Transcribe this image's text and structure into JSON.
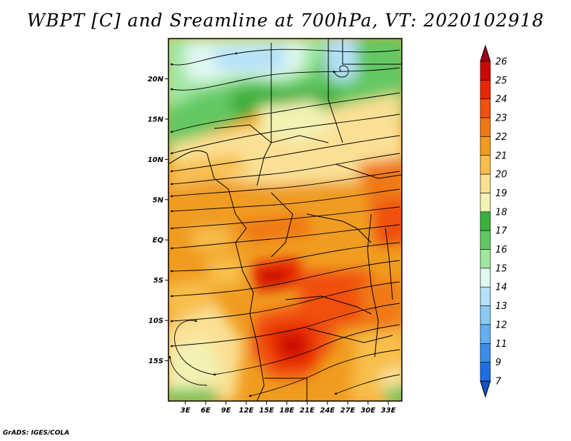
{
  "title": "WBPT [C] and Sreamline at 700hPa, VT: 2020102918",
  "footer": "GrADS: IGES/COLA",
  "map": {
    "lat_labels": [
      "20N",
      "15N",
      "10N",
      "5N",
      "EQ",
      "5S",
      "10S",
      "15S"
    ],
    "lon_labels": [
      "3E",
      "6E",
      "9E",
      "12E",
      "15E",
      "18E",
      "21E",
      "24E",
      "27E",
      "30E",
      "33E"
    ],
    "lat_values": [
      20,
      15,
      10,
      5,
      0,
      -5,
      -10,
      -15
    ],
    "lon_values": [
      3,
      6,
      9,
      12,
      15,
      18,
      21,
      24,
      27,
      30,
      33
    ],
    "extent": {
      "lon_min": 0.5,
      "lon_max": 35,
      "lat_min": -20,
      "lat_max": 25
    }
  },
  "colorbar": {
    "labels": [
      "26",
      "25",
      "24",
      "23",
      "22",
      "21",
      "20",
      "19",
      "18",
      "17",
      "16",
      "15",
      "14",
      "13",
      "12",
      "11",
      "9",
      "7"
    ],
    "colors": [
      "#a0001a",
      "#c80a00",
      "#e82800",
      "#f05010",
      "#f07818",
      "#f09c20",
      "#f8be4c",
      "#fae094",
      "#f2f2b4",
      "#3caf3c",
      "#64c864",
      "#a0e6a0",
      "#e0f8f0",
      "#b4e0f8",
      "#8cc8f4",
      "#64b0f0",
      "#3c8ce8",
      "#1e6ee0",
      "#1450c8"
    ]
  }
}
